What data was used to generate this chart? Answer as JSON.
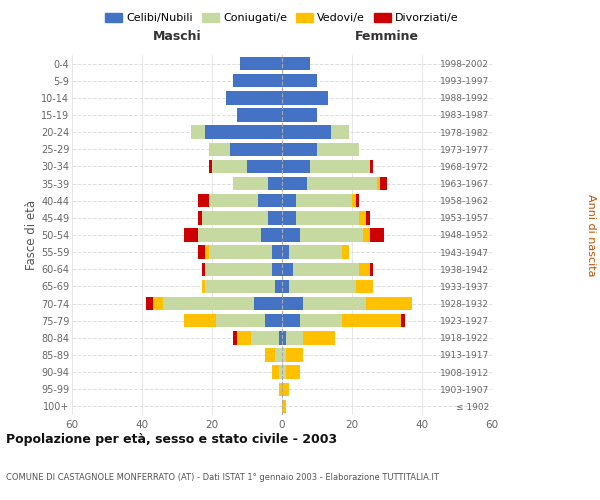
{
  "age_groups": [
    "100+",
    "95-99",
    "90-94",
    "85-89",
    "80-84",
    "75-79",
    "70-74",
    "65-69",
    "60-64",
    "55-59",
    "50-54",
    "45-49",
    "40-44",
    "35-39",
    "30-34",
    "25-29",
    "20-24",
    "15-19",
    "10-14",
    "5-9",
    "0-4"
  ],
  "birth_years": [
    "≤ 1902",
    "1903-1907",
    "1908-1912",
    "1913-1917",
    "1918-1922",
    "1923-1927",
    "1928-1932",
    "1933-1937",
    "1938-1942",
    "1943-1947",
    "1948-1952",
    "1953-1957",
    "1958-1962",
    "1963-1967",
    "1968-1972",
    "1973-1977",
    "1978-1982",
    "1983-1987",
    "1988-1992",
    "1993-1997",
    "1998-2002"
  ],
  "maschi_celibi": [
    0,
    0,
    0,
    0,
    1,
    5,
    8,
    2,
    3,
    3,
    6,
    4,
    7,
    4,
    10,
    15,
    22,
    13,
    16,
    14,
    12
  ],
  "maschi_coniugati": [
    0,
    0,
    1,
    2,
    8,
    14,
    26,
    20,
    19,
    18,
    18,
    19,
    14,
    10,
    10,
    6,
    4,
    0,
    0,
    0,
    0
  ],
  "maschi_vedovi": [
    0,
    1,
    2,
    3,
    4,
    9,
    3,
    1,
    0,
    1,
    0,
    0,
    0,
    0,
    0,
    0,
    0,
    0,
    0,
    0,
    0
  ],
  "maschi_divorziati": [
    0,
    0,
    0,
    0,
    1,
    0,
    2,
    0,
    1,
    2,
    4,
    1,
    3,
    0,
    1,
    0,
    0,
    0,
    0,
    0,
    0
  ],
  "femmine_celibi": [
    0,
    0,
    0,
    0,
    1,
    5,
    6,
    2,
    3,
    2,
    5,
    4,
    4,
    7,
    8,
    10,
    14,
    10,
    13,
    10,
    8
  ],
  "femmine_coniugati": [
    0,
    0,
    1,
    1,
    5,
    12,
    18,
    19,
    19,
    15,
    18,
    18,
    16,
    20,
    17,
    12,
    5,
    0,
    0,
    0,
    0
  ],
  "femmine_vedovi": [
    1,
    2,
    4,
    5,
    9,
    17,
    13,
    5,
    3,
    2,
    2,
    2,
    1,
    1,
    0,
    0,
    0,
    0,
    0,
    0,
    0
  ],
  "femmine_divorziati": [
    0,
    0,
    0,
    0,
    0,
    1,
    0,
    0,
    1,
    0,
    4,
    1,
    1,
    2,
    1,
    0,
    0,
    0,
    0,
    0,
    0
  ],
  "colors": {
    "celibi": "#4472c4",
    "coniugati": "#c5d9a0",
    "vedovi": "#ffc000",
    "divorziati": "#cc0000"
  },
  "title": "Popolazione per età, sesso e stato civile - 2003",
  "subtitle": "COMUNE DI CASTAGNOLE MONFERRATO (AT) - Dati ISTAT 1° gennaio 2003 - Elaborazione TUTTITALIA.IT",
  "ylabel_left": "Fasce di età",
  "ylabel_right": "Anni di nascita",
  "xlabel_left": "Maschi",
  "xlabel_right": "Femmine",
  "xlim": 60,
  "background_color": "#ffffff",
  "grid_color": "#dddddd"
}
